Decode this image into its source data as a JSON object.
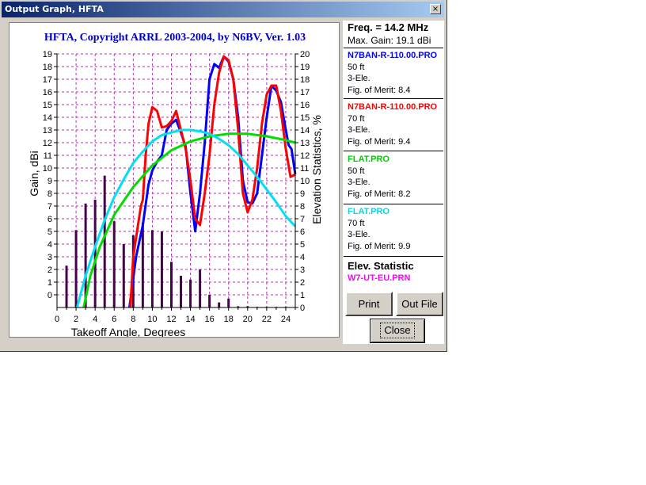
{
  "window": {
    "title": "Output Graph, HFTA",
    "close_glyph": "×"
  },
  "chart_data": {
    "type": "line",
    "title": "HFTA, Copyright ARRL 2003-2004, by N6BV, Ver. 1.03",
    "xlabel": "Takeoff Angle, Degrees",
    "ylabel": "Gain, dBi",
    "y2label": "Elevation Statistics, %",
    "xlim": [
      0,
      25
    ],
    "ylim": [
      -1,
      19
    ],
    "y2lim": [
      0,
      20
    ],
    "x_ticks": [
      "0",
      "2",
      "4",
      "6",
      "8",
      "10",
      "12",
      "14",
      "16",
      "18",
      "20",
      "22",
      "24"
    ],
    "y_ticks": [
      "0",
      "1",
      "2",
      "3",
      "4",
      "5",
      "6",
      "7",
      "8",
      "9",
      "10",
      "11",
      "12",
      "13",
      "14",
      "15",
      "16",
      "17",
      "18",
      "19"
    ],
    "y2_ticks": [
      "0",
      "1",
      "2",
      "3",
      "4",
      "5",
      "6",
      "7",
      "8",
      "9",
      "10",
      "11",
      "12",
      "13",
      "14",
      "15",
      "16",
      "17",
      "18",
      "19",
      "20"
    ],
    "grid": true,
    "series": [
      {
        "name": "N7BAN-R-110.00.PRO 50 ft",
        "color": "#0000ff",
        "points": [
          [
            7.6,
            -1
          ],
          [
            8.3,
            3
          ],
          [
            9,
            5.5
          ],
          [
            9.6,
            8.7
          ],
          [
            10,
            9.8
          ],
          [
            10.5,
            10.5
          ],
          [
            11,
            11
          ],
          [
            11.5,
            13
          ],
          [
            12,
            13.5
          ],
          [
            12.5,
            13.8
          ],
          [
            13,
            12.8
          ],
          [
            13.5,
            11.7
          ],
          [
            14,
            8
          ],
          [
            14.5,
            5
          ],
          [
            15,
            8
          ],
          [
            15.5,
            12
          ],
          [
            16,
            17
          ],
          [
            16.5,
            18.2
          ],
          [
            17,
            17.9
          ],
          [
            17.5,
            18.8
          ],
          [
            18,
            18.4
          ],
          [
            18.5,
            17
          ],
          [
            19,
            14
          ],
          [
            19.5,
            9
          ],
          [
            20,
            7.3
          ],
          [
            20.5,
            7.2
          ],
          [
            21,
            8
          ],
          [
            21.5,
            11
          ],
          [
            22,
            14
          ],
          [
            22.5,
            16.5
          ],
          [
            23,
            16.1
          ],
          [
            23.5,
            15.2
          ],
          [
            24,
            13
          ],
          [
            24.3,
            11.8
          ],
          [
            24.6,
            11.5
          ],
          [
            25,
            9.5
          ]
        ]
      },
      {
        "name": "N7BAN-R-110.00.PRO 70 ft",
        "color": "#ff0000",
        "points": [
          [
            7.7,
            -1
          ],
          [
            8,
            3
          ],
          [
            8.4,
            5
          ],
          [
            8.8,
            7
          ],
          [
            9,
            7.5
          ],
          [
            9.3,
            11
          ],
          [
            9.6,
            13.5
          ],
          [
            10,
            14.8
          ],
          [
            10.5,
            14.5
          ],
          [
            11,
            13.2
          ],
          [
            11.5,
            13.3
          ],
          [
            12,
            13.7
          ],
          [
            12.5,
            14.5
          ],
          [
            13,
            13
          ],
          [
            13.5,
            11.5
          ],
          [
            14,
            9
          ],
          [
            14.5,
            6
          ],
          [
            15,
            5.5
          ],
          [
            15.5,
            8
          ],
          [
            16,
            11
          ],
          [
            16.5,
            15
          ],
          [
            17,
            17.5
          ],
          [
            17.5,
            18.8
          ],
          [
            18,
            18.5
          ],
          [
            18.5,
            17
          ],
          [
            19,
            13
          ],
          [
            19.5,
            8
          ],
          [
            20,
            6.5
          ],
          [
            20.5,
            7.5
          ],
          [
            21,
            10
          ],
          [
            21.5,
            13.5
          ],
          [
            22,
            15.8
          ],
          [
            22.5,
            16.5
          ],
          [
            23,
            16.5
          ],
          [
            23.5,
            14.5
          ],
          [
            24,
            11.5
          ],
          [
            24.5,
            9.3
          ],
          [
            25,
            9.5
          ]
        ]
      },
      {
        "name": "FLAT.PRO 50 ft",
        "color": "#00dd00",
        "points": [
          [
            2.8,
            -1
          ],
          [
            3.5,
            1.5
          ],
          [
            4.5,
            3.8
          ],
          [
            6,
            6.3
          ],
          [
            8,
            8.5
          ],
          [
            10,
            10.2
          ],
          [
            12,
            11.4
          ],
          [
            14,
            12.1
          ],
          [
            16,
            12.5
          ],
          [
            18,
            12.7
          ],
          [
            20,
            12.7
          ],
          [
            22,
            12.5
          ],
          [
            24,
            12.2
          ],
          [
            25,
            12
          ]
        ]
      },
      {
        "name": "FLAT.PRO 70 ft",
        "color": "#00e0f0",
        "points": [
          [
            2.1,
            -1
          ],
          [
            3,
            1.5
          ],
          [
            4,
            3.8
          ],
          [
            5,
            5.9
          ],
          [
            6,
            7.7
          ],
          [
            7,
            9.1
          ],
          [
            8,
            10.4
          ],
          [
            9,
            11.3
          ],
          [
            10,
            12.1
          ],
          [
            11,
            12.6
          ],
          [
            12,
            12.8
          ],
          [
            13,
            13
          ],
          [
            14,
            13
          ],
          [
            15,
            12.9
          ],
          [
            16,
            12.7
          ],
          [
            17,
            12.3
          ],
          [
            18,
            11.8
          ],
          [
            19,
            11.1
          ],
          [
            20,
            10.2
          ],
          [
            21,
            9.3
          ],
          [
            22,
            8.3
          ],
          [
            23,
            7.3
          ],
          [
            24,
            6.2
          ],
          [
            25,
            5.4
          ]
        ]
      }
    ],
    "bars": {
      "name": "W7-UT-EU.PRN",
      "x": [
        1,
        2,
        3,
        4,
        5,
        6,
        7,
        8,
        9,
        10,
        11,
        12,
        13,
        14,
        15,
        16,
        17,
        18,
        19,
        20,
        21,
        22,
        23,
        24
      ],
      "values": [
        3.3,
        6.1,
        8.2,
        8.5,
        10.4,
        6.8,
        5,
        5.7,
        6.7,
        6.1,
        6,
        3.6,
        2.5,
        2.2,
        3,
        1,
        0.4,
        0.7,
        0.1,
        0.1,
        0.05,
        0.05,
        0.05,
        0.05
      ]
    }
  },
  "panel": {
    "freq": "Freq. = 14.2 MHz",
    "max_gain": "Max. Gain: 19.1 dBi",
    "entries": [
      {
        "file": "N7BAN-R-110.00.PRO",
        "color": "#0000ff",
        "height": "50 ft",
        "ele": "3-Ele.",
        "fom": "Fig. of Merit:  8.4"
      },
      {
        "file": "N7BAN-R-110.00.PRO",
        "color": "#ff0000",
        "height": "70 ft",
        "ele": "3-Ele.",
        "fom": "Fig. of Merit:  9.4"
      },
      {
        "file": "FLAT.PRO",
        "color": "#00cc00",
        "height": "50 ft",
        "ele": "3-Ele.",
        "fom": "Fig. of Merit:  8.2"
      },
      {
        "file": "FLAT.PRO",
        "color": "#00d8e8",
        "height": "70 ft",
        "ele": "3-Ele.",
        "fom": "Fig. of Merit:  9.9"
      }
    ],
    "elev_title": "Elev. Statistic",
    "elev_file": "W7-UT-EU.PRN",
    "elev_color": "#ff00ff"
  },
  "buttons": {
    "print": "Print",
    "outfile": "Out File",
    "close": "Close"
  }
}
